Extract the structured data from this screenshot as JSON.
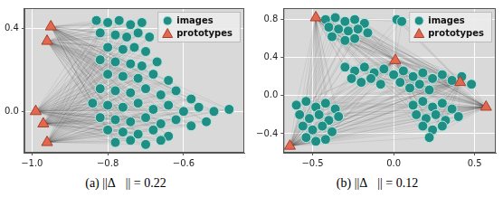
{
  "chart_data": [
    {
      "type": "scatter",
      "title": "(a) ||Δ⃗|| = 0.22",
      "grid": true,
      "legend": "upper right",
      "xlim": [
        -1.02,
        -0.44
      ],
      "ylim": [
        -0.2,
        0.5
      ],
      "xticks": [
        {
          "value": -1.0,
          "label": "−1.0"
        },
        {
          "value": -0.8,
          "label": "−0.8"
        },
        {
          "value": -0.6,
          "label": "−0.6"
        }
      ],
      "yticks": [
        {
          "value": 0.0,
          "label": "0.0"
        },
        {
          "value": 0.4,
          "label": "0.4"
        }
      ],
      "series": [
        {
          "name": "images",
          "color": "#1f8f86",
          "marker": "circle",
          "x": [
            -0.83,
            -0.8,
            -0.77,
            -0.74,
            -0.71,
            -0.82,
            -0.78,
            -0.75,
            -0.72,
            -0.69,
            -0.8,
            -0.76,
            -0.73,
            -0.7,
            -0.82,
            -0.78,
            -0.74,
            -0.71,
            -0.67,
            -0.8,
            -0.76,
            -0.72,
            -0.68,
            -0.64,
            -0.82,
            -0.78,
            -0.74,
            -0.7,
            -0.66,
            -0.62,
            -0.58,
            -0.84,
            -0.8,
            -0.76,
            -0.72,
            -0.68,
            -0.64,
            -0.6,
            -0.56,
            -0.52,
            -0.48,
            -0.82,
            -0.78,
            -0.74,
            -0.7,
            -0.66,
            -0.62,
            -0.58,
            -0.54,
            -0.8,
            -0.76,
            -0.72,
            -0.68,
            -0.64,
            -0.78,
            -0.74,
            -0.7,
            -0.66
          ],
          "values": [
            0.44,
            0.43,
            0.44,
            0.42,
            0.43,
            0.38,
            0.37,
            0.36,
            0.38,
            0.36,
            0.31,
            0.3,
            0.31,
            0.29,
            0.25,
            0.24,
            0.23,
            0.22,
            0.24,
            0.18,
            0.17,
            0.16,
            0.18,
            0.15,
            0.11,
            0.1,
            0.09,
            0.11,
            0.08,
            0.1,
            0.06,
            0.04,
            0.03,
            0.02,
            0.04,
            0.01,
            0.03,
            0.0,
            0.02,
            0.0,
            0.01,
            -0.03,
            -0.04,
            -0.05,
            -0.03,
            -0.06,
            -0.04,
            -0.07,
            -0.05,
            -0.09,
            -0.1,
            -0.11,
            -0.09,
            -0.12,
            -0.15,
            -0.14,
            -0.16,
            -0.14
          ]
        },
        {
          "name": "prototypes",
          "color": "#e2694f",
          "marker": "triangle",
          "x": [
            -0.95,
            -0.96,
            -0.99,
            -0.97,
            -0.96
          ],
          "values": [
            0.41,
            0.34,
            0.0,
            -0.06,
            -0.15
          ]
        }
      ]
    },
    {
      "type": "scatter",
      "title": "(b) ||Δ⃗|| = 0.12",
      "grid": true,
      "legend": "upper right",
      "xlim": [
        -0.68,
        0.63
      ],
      "ylim": [
        -0.6,
        0.92
      ],
      "xticks": [
        {
          "value": -0.5,
          "label": "−0.5"
        },
        {
          "value": 0.0,
          "label": "0.0"
        },
        {
          "value": 0.5,
          "label": "0.5"
        }
      ],
      "yticks": [
        {
          "value": -0.4,
          "label": "−0.4"
        },
        {
          "value": 0.0,
          "label": "0.0"
        },
        {
          "value": 0.4,
          "label": "0.4"
        },
        {
          "value": 0.8,
          "label": "0.8"
        }
      ],
      "series": [
        {
          "name": "images",
          "color": "#1f8f86",
          "marker": "circle",
          "x": [
            -0.42,
            -0.36,
            -0.3,
            -0.24,
            -0.18,
            -0.4,
            -0.34,
            -0.28,
            -0.22,
            -0.16,
            -0.38,
            -0.3,
            -0.24,
            0.02,
            0.05,
            -0.3,
            -0.24,
            -0.18,
            -0.12,
            -0.06,
            0.0,
            0.06,
            0.12,
            0.18,
            0.24,
            0.3,
            0.36,
            0.42,
            0.48,
            -0.26,
            -0.2,
            -0.14,
            -0.08,
            0.04,
            0.1,
            0.16,
            0.22,
            -0.6,
            -0.54,
            -0.48,
            -0.42,
            -0.36,
            -0.58,
            -0.52,
            -0.46,
            -0.4,
            -0.34,
            -0.56,
            -0.5,
            -0.44,
            -0.38,
            -0.54,
            -0.48,
            -0.42,
            0.12,
            0.18,
            0.24,
            0.3,
            0.36,
            0.14,
            0.2,
            0.26,
            0.32,
            0.4,
            0.18,
            0.24,
            0.3,
            0.22
          ],
          "values": [
            0.8,
            0.82,
            0.78,
            0.8,
            0.76,
            0.72,
            0.7,
            0.68,
            0.7,
            0.66,
            0.62,
            0.58,
            0.6,
            0.8,
            0.78,
            0.3,
            0.26,
            0.3,
            0.24,
            0.28,
            0.22,
            0.26,
            0.2,
            0.24,
            0.18,
            0.22,
            0.16,
            0.2,
            0.12,
            0.18,
            0.14,
            0.18,
            0.12,
            0.14,
            0.08,
            0.12,
            0.06,
            -0.1,
            -0.06,
            -0.12,
            -0.08,
            -0.14,
            -0.2,
            -0.24,
            -0.2,
            -0.26,
            -0.22,
            -0.32,
            -0.36,
            -0.32,
            -0.38,
            -0.44,
            -0.48,
            -0.46,
            -0.1,
            -0.06,
            -0.12,
            -0.08,
            -0.14,
            -0.2,
            -0.24,
            -0.2,
            -0.26,
            -0.22,
            -0.32,
            -0.36,
            -0.32,
            -0.44
          ]
        },
        {
          "name": "prototypes",
          "color": "#e2694f",
          "marker": "triangle",
          "x": [
            -0.48,
            0.01,
            0.41,
            0.57,
            -0.64
          ],
          "values": [
            0.82,
            0.37,
            0.14,
            -0.12,
            -0.53
          ]
        }
      ]
    }
  ]
}
